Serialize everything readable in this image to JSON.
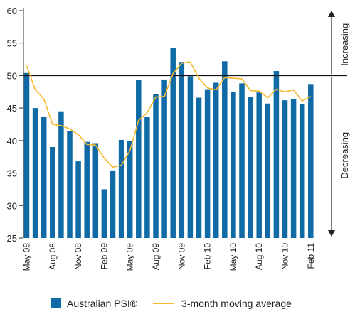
{
  "chart_data": {
    "type": "bar",
    "ylim": [
      25,
      60
    ],
    "yticks": [
      25,
      30,
      35,
      40,
      45,
      50,
      55,
      60
    ],
    "reference_line": 50,
    "x_tick_labels": [
      "May 08",
      "Aug 08",
      "Nov 08",
      "Feb 09",
      "May 09",
      "Aug 09",
      "Nov 09",
      "Feb 10",
      "May 10",
      "Aug 10",
      "Nov 10",
      "Feb 11"
    ],
    "categories": [
      "May 08",
      "Jun 08",
      "Jul 08",
      "Aug 08",
      "Sep 08",
      "Oct 08",
      "Nov 08",
      "Dec 08",
      "Jan 09",
      "Feb 09",
      "Mar 09",
      "Apr 09",
      "May 09",
      "Jun 09",
      "Jul 09",
      "Aug 09",
      "Sep 09",
      "Oct 09",
      "Nov 09",
      "Dec 09",
      "Jan 10",
      "Feb 10",
      "Mar 10",
      "Apr 10",
      "May 10",
      "Jun 10",
      "Jul 10",
      "Aug 10",
      "Sep 10",
      "Oct 10",
      "Nov 10",
      "Dec 10",
      "Jan 11",
      "Feb 11"
    ],
    "series": [
      {
        "name": "Australian PSI®",
        "kind": "bar",
        "color": "#0f6aa5",
        "values": [
          50.4,
          45.0,
          43.6,
          39.0,
          44.5,
          41.5,
          36.8,
          39.8,
          39.6,
          32.5,
          35.4,
          40.1,
          39.9,
          49.3,
          43.6,
          47.2,
          49.4,
          54.2,
          52.1,
          49.9,
          46.6,
          47.9,
          48.9,
          52.2,
          47.5,
          48.8,
          46.7,
          47.4,
          45.7,
          50.7,
          46.2,
          46.4,
          45.6,
          48.7
        ]
      },
      {
        "name": "3-month moving average",
        "kind": "line",
        "color": "#f5b82e",
        "values": [
          51.5,
          47.8,
          46.4,
          42.5,
          42.3,
          41.8,
          40.9,
          39.4,
          39.3,
          37.3,
          35.9,
          36.2,
          38.5,
          43.1,
          44.3,
          46.7,
          46.8,
          50.3,
          51.9,
          52.1,
          49.6,
          48.1,
          47.8,
          49.7,
          49.6,
          49.5,
          47.7,
          47.6,
          46.6,
          47.9,
          47.5,
          47.8,
          46.1,
          46.8
        ]
      }
    ],
    "side_labels": {
      "top": "Increasing",
      "bottom": "Decreasing"
    }
  }
}
